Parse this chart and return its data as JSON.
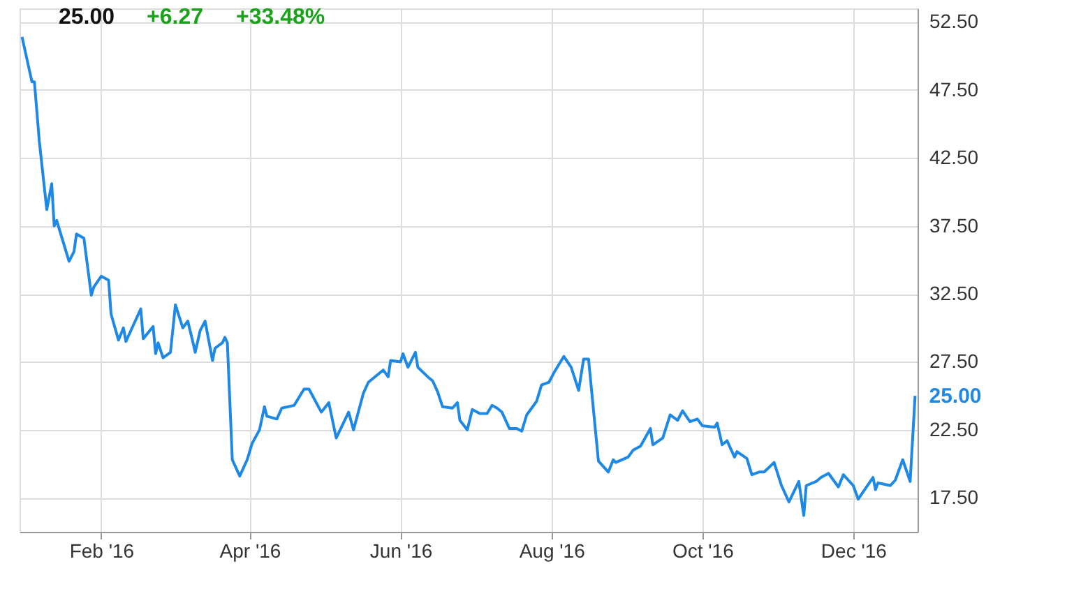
{
  "chart_data": {
    "type": "line",
    "title": "25.00",
    "annotations": [
      "+6.27",
      "+33.48%",
      {
        "text": "25.00",
        "x": "2016-12-26",
        "y": 25.0
      }
    ],
    "x": [
      "2015-12-31",
      "2016-01-04",
      "2016-01-05",
      "2016-01-07",
      "2016-01-10",
      "2016-01-12",
      "2016-01-13",
      "2016-01-14",
      "2016-01-19",
      "2016-01-21",
      "2016-01-22",
      "2016-01-25",
      "2016-01-28",
      "2016-01-29",
      "2016-02-01",
      "2016-02-04",
      "2016-02-05",
      "2016-02-08",
      "2016-02-10",
      "2016-02-11",
      "2016-02-17",
      "2016-02-18",
      "2016-02-22",
      "2016-02-23",
      "2016-02-24",
      "2016-02-26",
      "2016-02-29",
      "2016-03-02",
      "2016-03-05",
      "2016-03-07",
      "2016-03-09",
      "2016-03-10",
      "2016-03-12",
      "2016-03-14",
      "2016-03-17",
      "2016-03-18",
      "2016-03-21",
      "2016-03-22",
      "2016-03-23",
      "2016-03-25",
      "2016-03-28",
      "2016-03-31",
      "2016-04-02",
      "2016-04-05",
      "2016-04-07",
      "2016-04-08",
      "2016-04-12",
      "2016-04-14",
      "2016-04-19",
      "2016-04-23",
      "2016-04-25",
      "2016-04-30",
      "2016-05-03",
      "2016-05-06",
      "2016-05-11",
      "2016-05-13",
      "2016-05-17",
      "2016-05-19",
      "2016-05-25",
      "2016-05-27",
      "2016-05-28",
      "2016-06-01",
      "2016-06-02",
      "2016-06-04",
      "2016-06-07",
      "2016-06-08",
      "2016-06-12",
      "2016-06-14",
      "2016-06-16",
      "2016-06-18",
      "2016-06-22",
      "2016-06-24",
      "2016-06-25",
      "2016-06-28",
      "2016-06-30",
      "2016-07-03",
      "2016-07-06",
      "2016-07-08",
      "2016-07-10",
      "2016-07-12",
      "2016-07-15",
      "2016-07-18",
      "2016-07-20",
      "2016-07-22",
      "2016-07-26",
      "2016-07-28",
      "2016-07-31",
      "2016-08-02",
      "2016-08-06",
      "2016-08-09",
      "2016-08-12",
      "2016-08-14",
      "2016-08-16",
      "2016-08-20",
      "2016-08-24",
      "2016-08-26",
      "2016-08-27",
      "2016-09-01",
      "2016-09-03",
      "2016-09-06",
      "2016-09-10",
      "2016-09-11",
      "2016-09-15",
      "2016-09-18",
      "2016-09-21",
      "2016-09-23",
      "2016-09-26",
      "2016-09-29",
      "2016-10-01",
      "2016-10-06",
      "2016-10-07",
      "2016-10-09",
      "2016-10-11",
      "2016-10-14",
      "2016-10-15",
      "2016-10-19",
      "2016-10-21",
      "2016-10-24",
      "2016-10-26",
      "2016-10-30",
      "2016-11-02",
      "2016-11-05",
      "2016-11-09",
      "2016-11-11",
      "2016-11-12",
      "2016-11-16",
      "2016-11-18",
      "2016-11-21",
      "2016-11-25",
      "2016-11-27",
      "2016-12-01",
      "2016-12-03",
      "2016-12-09",
      "2016-12-10",
      "2016-12-11",
      "2016-12-16",
      "2016-12-18",
      "2016-12-21",
      "2016-12-24",
      "2016-12-26"
    ],
    "series": [
      {
        "color": "#1e88e5",
        "values": [
          51.4,
          48.1,
          48.1,
          43.7,
          38.7,
          40.6,
          37.5,
          37.9,
          34.9,
          35.6,
          36.9,
          36.6,
          32.4,
          33.0,
          33.8,
          33.5,
          31.0,
          29.1,
          30.0,
          29.0,
          31.4,
          29.2,
          30.1,
          28.1,
          28.9,
          27.8,
          28.2,
          31.7,
          30.0,
          30.5,
          29.0,
          28.2,
          29.8,
          30.5,
          27.6,
          28.5,
          28.9,
          29.3,
          28.9,
          20.3,
          19.1,
          20.3,
          21.5,
          22.5,
          24.2,
          23.5,
          23.3,
          24.1,
          24.3,
          25.5,
          25.5,
          23.8,
          24.5,
          21.9,
          23.8,
          22.5,
          25.2,
          26.0,
          26.9,
          26.4,
          27.6,
          27.5,
          28.1,
          27.1,
          28.2,
          27.1,
          26.4,
          26.1,
          25.3,
          24.2,
          24.1,
          24.5,
          23.2,
          22.5,
          24.0,
          23.7,
          23.7,
          24.3,
          24.1,
          23.8,
          22.6,
          22.6,
          22.4,
          23.6,
          24.6,
          25.8,
          26.0,
          26.7,
          27.9,
          27.1,
          25.4,
          27.7,
          27.7,
          20.2,
          19.4,
          20.3,
          20.1,
          20.5,
          21.0,
          21.3,
          22.6,
          21.4,
          21.9,
          23.6,
          23.2,
          23.9,
          23.1,
          23.3,
          22.8,
          22.7,
          23.0,
          21.4,
          21.7,
          20.5,
          20.9,
          20.4,
          19.2,
          19.4,
          19.4,
          20.1,
          18.4,
          17.2,
          18.7,
          16.2,
          18.4,
          18.7,
          19.0,
          19.3,
          18.3,
          19.2,
          18.4,
          17.4,
          19.0,
          18.1,
          18.6,
          18.4,
          18.8,
          20.3,
          18.7,
          25.0
        ]
      }
    ],
    "xlim": [
      "2015-12-30",
      "2016-12-27"
    ],
    "xticks": [
      {
        "value": "2016-02-01",
        "label": "Feb '16"
      },
      {
        "value": "2016-04-01",
        "label": "Apr '16"
      },
      {
        "value": "2016-06-01",
        "label": "Jun '16"
      },
      {
        "value": "2016-08-01",
        "label": "Aug '16"
      },
      {
        "value": "2016-10-01",
        "label": "Oct '16"
      },
      {
        "value": "2016-12-01",
        "label": "Dec '16"
      }
    ],
    "ylim": [
      15,
      53.5
    ],
    "yticks": [
      {
        "value": 17.5,
        "label": "17.50"
      },
      {
        "value": 22.5,
        "label": "22.50"
      },
      {
        "value": 27.5,
        "label": "27.50"
      },
      {
        "value": 32.5,
        "label": "32.50"
      },
      {
        "value": 37.5,
        "label": "37.50"
      },
      {
        "value": 42.5,
        "label": "42.50"
      },
      {
        "value": 47.5,
        "label": "47.50"
      },
      {
        "value": 52.5,
        "label": "52.50"
      }
    ],
    "grid": true,
    "marker": "none",
    "line_style": "solid"
  }
}
